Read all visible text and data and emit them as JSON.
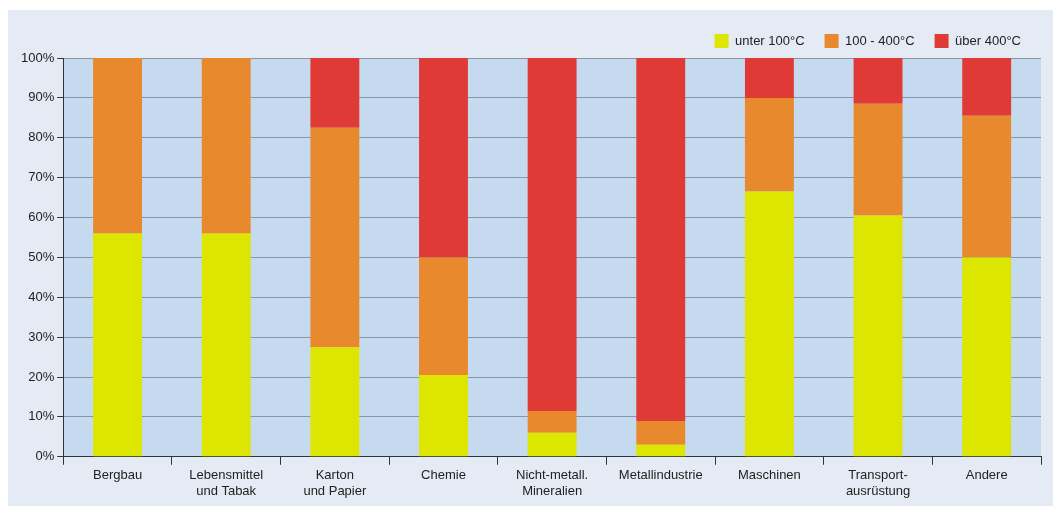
{
  "chart_data": {
    "type": "bar",
    "stacked": true,
    "categories": [
      "Bergbau",
      "Lebensmittel\nund Tabak",
      "Karton\nund Papier",
      "Chemie",
      "Nicht-metall.\nMineralien",
      "Metallindustrie",
      "Maschinen",
      "Transport-\nausrüstung",
      "Andere"
    ],
    "series": [
      {
        "name": "unter 100°C",
        "color": "#dde600",
        "values": [
          56,
          56,
          27.5,
          20.5,
          6,
          3,
          66.5,
          60.5,
          50
        ]
      },
      {
        "name": "100 - 400°C",
        "color": "#e8892e",
        "values": [
          44,
          44,
          55,
          29.5,
          5.5,
          6,
          23.5,
          28,
          35.5
        ]
      },
      {
        "name": "über 400°C",
        "color": "#e03a36",
        "values": [
          0,
          0,
          17.5,
          50,
          88.5,
          91,
          10,
          11.5,
          14.5
        ]
      }
    ],
    "ylim": [
      0,
      100
    ],
    "yticks": [
      {
        "value": 0,
        "label": "0%"
      },
      {
        "value": 10,
        "label": "10%"
      },
      {
        "value": 20,
        "label": "20%"
      },
      {
        "value": 30,
        "label": "30%"
      },
      {
        "value": 40,
        "label": "40%"
      },
      {
        "value": 50,
        "label": "50%"
      },
      {
        "value": 60,
        "label": "60%"
      },
      {
        "value": 70,
        "label": "70%"
      },
      {
        "value": 80,
        "label": "80%"
      },
      {
        "value": 90,
        "label": "90%"
      },
      {
        "value": 100,
        "label": "100%"
      }
    ],
    "grid": "y",
    "legend": "top right"
  }
}
